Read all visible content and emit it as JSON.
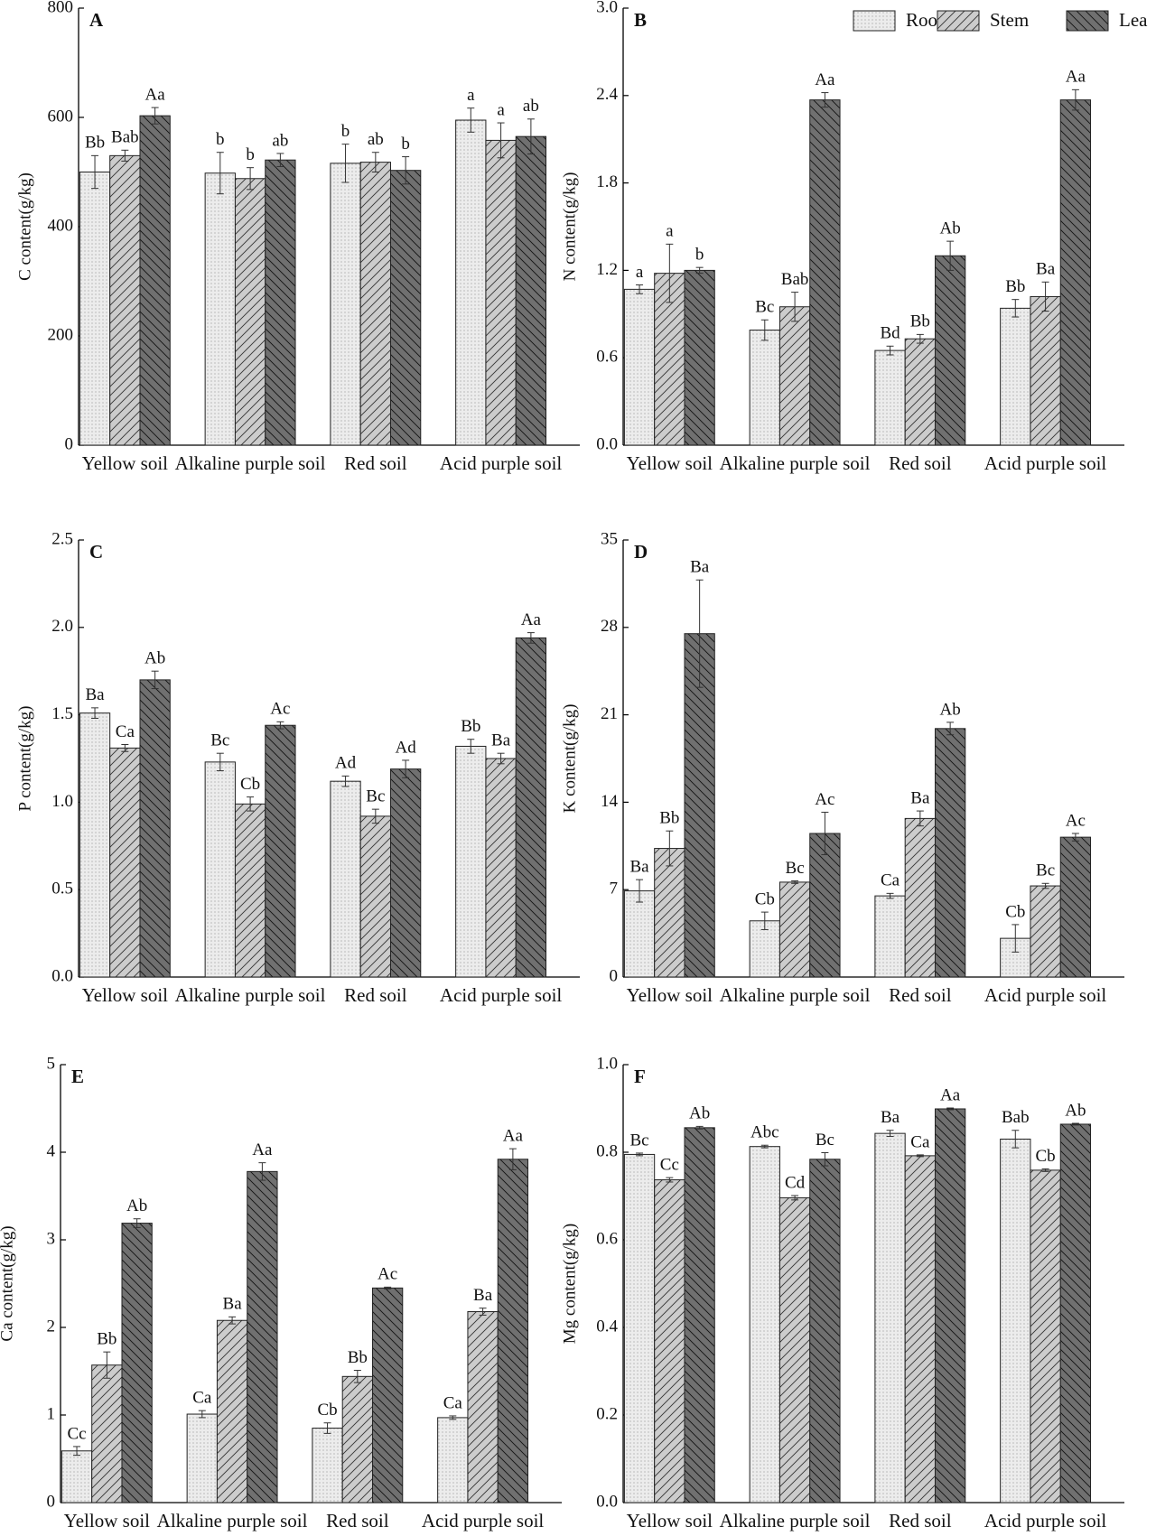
{
  "chart_data": [
    {
      "type": "bar",
      "panel": "A",
      "ylabel": "C content(g/kg)",
      "categories": [
        "Yellow soil",
        "Alkaline purple soil",
        "Red soil",
        "Acid purple soil"
      ],
      "ylim": [
        0,
        800
      ],
      "yticks": [
        0,
        200,
        400,
        600,
        800
      ],
      "legend": false,
      "series": [
        {
          "color": "#ececec",
          "pattern": "dots",
          "values": [
            500,
            498,
            516,
            595
          ],
          "errors": [
            30,
            38,
            35,
            22
          ],
          "labels": [
            "Bb",
            "b",
            "b",
            "a"
          ]
        },
        {
          "color": "#cccccc",
          "pattern": "slash",
          "values": [
            530,
            488,
            518,
            558
          ],
          "errors": [
            10,
            20,
            18,
            32
          ],
          "labels": [
            "Bab",
            "b",
            "ab",
            "a"
          ]
        },
        {
          "color": "#707070",
          "pattern": "backslash",
          "values": [
            603,
            522,
            503,
            565
          ],
          "errors": [
            15,
            12,
            25,
            32
          ],
          "labels": [
            "Aa",
            "ab",
            "b",
            "ab"
          ]
        }
      ]
    },
    {
      "type": "bar",
      "panel": "B",
      "ylabel": "N content(g/kg)",
      "categories": [
        "Yellow soil",
        "Alkaline purple soil",
        "Red soil",
        "Acid purple soil"
      ],
      "ylim": [
        0,
        3
      ],
      "yticks": [
        {
          "value": 0,
          "label": "0.0"
        },
        0.6,
        1.2,
        1.8,
        2.4,
        {
          "value": 3,
          "label": "3.0"
        }
      ],
      "legend": true,
      "series": [
        {
          "name": "Root",
          "color": "#ececec",
          "pattern": "dots",
          "values": [
            1.07,
            0.79,
            0.65,
            0.94
          ],
          "errors": [
            0.03,
            0.07,
            0.03,
            0.06
          ],
          "labels": [
            "a",
            "Bc",
            "Bd",
            "Bb"
          ]
        },
        {
          "name": "Stem",
          "color": "#cccccc",
          "pattern": "slash",
          "values": [
            1.18,
            0.95,
            0.73,
            1.02
          ],
          "errors": [
            0.2,
            0.1,
            0.03,
            0.1
          ],
          "labels": [
            "a",
            "Bab",
            "Bb",
            "Ba"
          ]
        },
        {
          "name": "Lea",
          "color": "#707070",
          "pattern": "backslash",
          "values": [
            1.2,
            2.37,
            1.3,
            2.37
          ],
          "errors": [
            0.02,
            0.05,
            0.1,
            0.07
          ],
          "labels": [
            "b",
            "Aa",
            "Ab",
            "Aa"
          ]
        }
      ]
    },
    {
      "type": "bar",
      "panel": "C",
      "ylabel": "P content(g/kg)",
      "categories": [
        "Yellow soil",
        "Alkaline purple soil",
        "Red soil",
        "Acid purple soil"
      ],
      "ylim": [
        0,
        2.5
      ],
      "yticks": [
        {
          "value": 0,
          "label": "0.0"
        },
        0.5,
        {
          "value": 1,
          "label": "1.0"
        },
        1.5,
        {
          "value": 2,
          "label": "2.0"
        },
        2.5
      ],
      "legend": false,
      "series": [
        {
          "color": "#ececec",
          "pattern": "dots",
          "values": [
            1.51,
            1.23,
            1.12,
            1.32
          ],
          "errors": [
            0.03,
            0.05,
            0.03,
            0.04
          ],
          "labels": [
            "Ba",
            "Bc",
            "Ad",
            "Bb"
          ]
        },
        {
          "color": "#cccccc",
          "pattern": "slash",
          "values": [
            1.31,
            0.99,
            0.92,
            1.25
          ],
          "errors": [
            0.02,
            0.04,
            0.04,
            0.03
          ],
          "labels": [
            "Ca",
            "Cb",
            "Bc",
            "Ba"
          ]
        },
        {
          "color": "#707070",
          "pattern": "backslash",
          "values": [
            1.7,
            1.44,
            1.19,
            1.94
          ],
          "errors": [
            0.05,
            0.02,
            0.05,
            0.03
          ],
          "labels": [
            "Ab",
            "Ac",
            "Ad",
            "Aa"
          ]
        }
      ]
    },
    {
      "type": "bar",
      "panel": "D",
      "ylabel": "K content(g/kg)",
      "categories": [
        "Yellow soil",
        "Alkaline purple soil",
        "Red soil",
        "Acid purple soil"
      ],
      "ylim": [
        0,
        35
      ],
      "yticks": [
        0,
        7,
        14,
        21,
        28,
        35
      ],
      "legend": false,
      "series": [
        {
          "color": "#ececec",
          "pattern": "dots",
          "values": [
            6.9,
            4.5,
            6.5,
            3.1
          ],
          "errors": [
            0.9,
            0.7,
            0.2,
            1.1
          ],
          "labels": [
            "Ba",
            "Cb",
            "Ca",
            "Cb"
          ]
        },
        {
          "color": "#cccccc",
          "pattern": "slash",
          "values": [
            10.3,
            7.6,
            12.7,
            7.3
          ],
          "errors": [
            1.4,
            0.1,
            0.6,
            0.2
          ],
          "labels": [
            "Bb",
            "Bc",
            "Ba",
            "Bc"
          ]
        },
        {
          "color": "#707070",
          "pattern": "backslash",
          "values": [
            27.5,
            11.5,
            19.9,
            11.2
          ],
          "errors": [
            4.3,
            1.7,
            0.5,
            0.3
          ],
          "labels": [
            "Ba",
            "Ac",
            "Ab",
            "Ac"
          ]
        }
      ]
    },
    {
      "type": "bar",
      "panel": "E",
      "ylabel": "Ca content(g/kg)",
      "categories": [
        "Yellow soil",
        "Alkaline purple soil",
        "Red soil",
        "Acid purple soil"
      ],
      "ylim": [
        0,
        5
      ],
      "yticks": [
        0,
        1,
        2,
        3,
        4,
        5
      ],
      "legend": false,
      "series": [
        {
          "color": "#ececec",
          "pattern": "dots",
          "values": [
            0.59,
            1.01,
            0.85,
            0.97
          ],
          "errors": [
            0.05,
            0.04,
            0.06,
            0.02
          ],
          "labels": [
            "Cc",
            "Ca",
            "Cb",
            "Ca"
          ]
        },
        {
          "color": "#cccccc",
          "pattern": "slash",
          "values": [
            1.57,
            2.08,
            1.44,
            2.18
          ],
          "errors": [
            0.15,
            0.04,
            0.07,
            0.04
          ],
          "labels": [
            "Bb",
            "Ba",
            "Bb",
            "Ba"
          ]
        },
        {
          "color": "#707070",
          "pattern": "backslash",
          "values": [
            3.19,
            3.78,
            2.45,
            3.92
          ],
          "errors": [
            0.05,
            0.1,
            0.01,
            0.12
          ],
          "labels": [
            "Ab",
            "Aa",
            "Ac",
            "Aa"
          ]
        }
      ]
    },
    {
      "type": "bar",
      "panel": "F",
      "ylabel": "Mg content(g/kg)",
      "categories": [
        "Yellow soil",
        "Alkaline purple soil",
        "Red soil",
        "Acid purple soil"
      ],
      "ylim": [
        0,
        1
      ],
      "yticks": [
        {
          "value": 0,
          "label": "0.0"
        },
        0.2,
        0.4,
        0.6,
        0.8,
        {
          "value": 1,
          "label": "1.0"
        }
      ],
      "legend": false,
      "series": [
        {
          "color": "#ececec",
          "pattern": "dots",
          "values": [
            0.795,
            0.813,
            0.843,
            0.83
          ],
          "errors": [
            0.003,
            0.003,
            0.007,
            0.02
          ],
          "labels": [
            "Bc",
            "Abc",
            "Ba",
            "Bab"
          ]
        },
        {
          "color": "#cccccc",
          "pattern": "slash",
          "values": [
            0.737,
            0.696,
            0.792,
            0.759
          ],
          "errors": [
            0.005,
            0.005,
            0.002,
            0.003
          ],
          "labels": [
            "Cc",
            "Cd",
            "Ca",
            "Cb"
          ]
        },
        {
          "color": "#707070",
          "pattern": "backslash",
          "values": [
            0.856,
            0.784,
            0.899,
            0.864
          ],
          "errors": [
            0.003,
            0.015,
            0.002,
            0.002
          ],
          "labels": [
            "Ab",
            "Bc",
            "Aa",
            "Ab"
          ]
        }
      ]
    }
  ]
}
